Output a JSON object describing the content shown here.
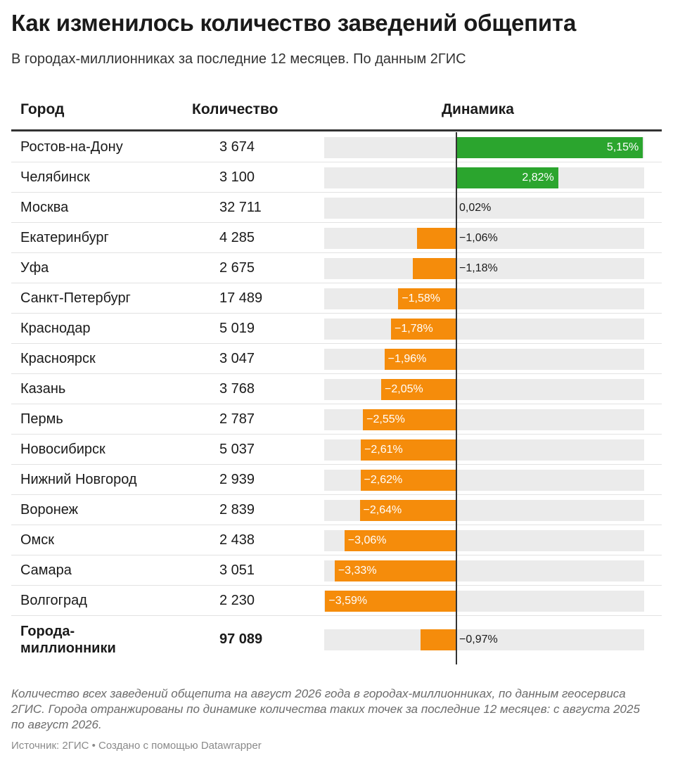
{
  "title": "Как изменилось количество заведений общепита",
  "subtitle": "В городах-миллионниках за последние 12 месяцев. По данным 2ГИС",
  "columns": {
    "city": "Город",
    "count": "Количество",
    "dynamics": "Динамика"
  },
  "colors": {
    "positive": "#2ba52e",
    "negative": "#f58c0b",
    "track": "#ebebeb",
    "axis": "#333333"
  },
  "chart_data": {
    "type": "bar",
    "orientation": "horizontal",
    "xlim": [
      -4.2,
      5.3
    ],
    "unit": "%",
    "rows": [
      {
        "city": "Ростов-на-Дону",
        "count": "3 674",
        "value": 5.15,
        "label": "5,15%"
      },
      {
        "city": "Челябинск",
        "count": "3 100",
        "value": 2.82,
        "label": "2,82%"
      },
      {
        "city": "Москва",
        "count": "32 711",
        "value": 0.02,
        "label": "0,02%"
      },
      {
        "city": "Екатеринбург",
        "count": "4 285",
        "value": -1.06,
        "label": "−1,06%"
      },
      {
        "city": "Уфа",
        "count": "2 675",
        "value": -1.18,
        "label": "−1,18%"
      },
      {
        "city": "Санкт-Петербург",
        "count": "17 489",
        "value": -1.58,
        "label": "−1,58%"
      },
      {
        "city": "Краснодар",
        "count": "5 019",
        "value": -1.78,
        "label": "−1,78%"
      },
      {
        "city": "Красноярск",
        "count": "3 047",
        "value": -1.96,
        "label": "−1,96%"
      },
      {
        "city": "Казань",
        "count": "3 768",
        "value": -2.05,
        "label": "−2,05%"
      },
      {
        "city": "Пермь",
        "count": "2 787",
        "value": -2.55,
        "label": "−2,55%"
      },
      {
        "city": "Новосибирск",
        "count": "5 037",
        "value": -2.61,
        "label": "−2,61%"
      },
      {
        "city": "Нижний Новгород",
        "count": "2 939",
        "value": -2.62,
        "label": "−2,62%"
      },
      {
        "city": "Воронеж",
        "count": "2 839",
        "value": -2.64,
        "label": "−2,64%"
      },
      {
        "city": "Омск",
        "count": "2 438",
        "value": -3.06,
        "label": "−3,06%"
      },
      {
        "city": "Самара",
        "count": "3 051",
        "value": -3.33,
        "label": "−3,33%"
      },
      {
        "city": "Волгоград",
        "count": "2 230",
        "value": -3.59,
        "label": "−3,59%"
      }
    ],
    "total": {
      "city": "Города-миллионники",
      "count": "97 089",
      "value": -0.97,
      "label": "−0,97%"
    }
  },
  "notes": "Количество всех заведений общепита на август 2026 года в городах-миллионниках, по данным геосервиса 2ГИС. Города отранжированы по динамике количества таких точек за последние 12 месяцев: с августа 2025 по август 2026.",
  "source": "Источник: 2ГИС • Создано с помощью Datawrapper"
}
